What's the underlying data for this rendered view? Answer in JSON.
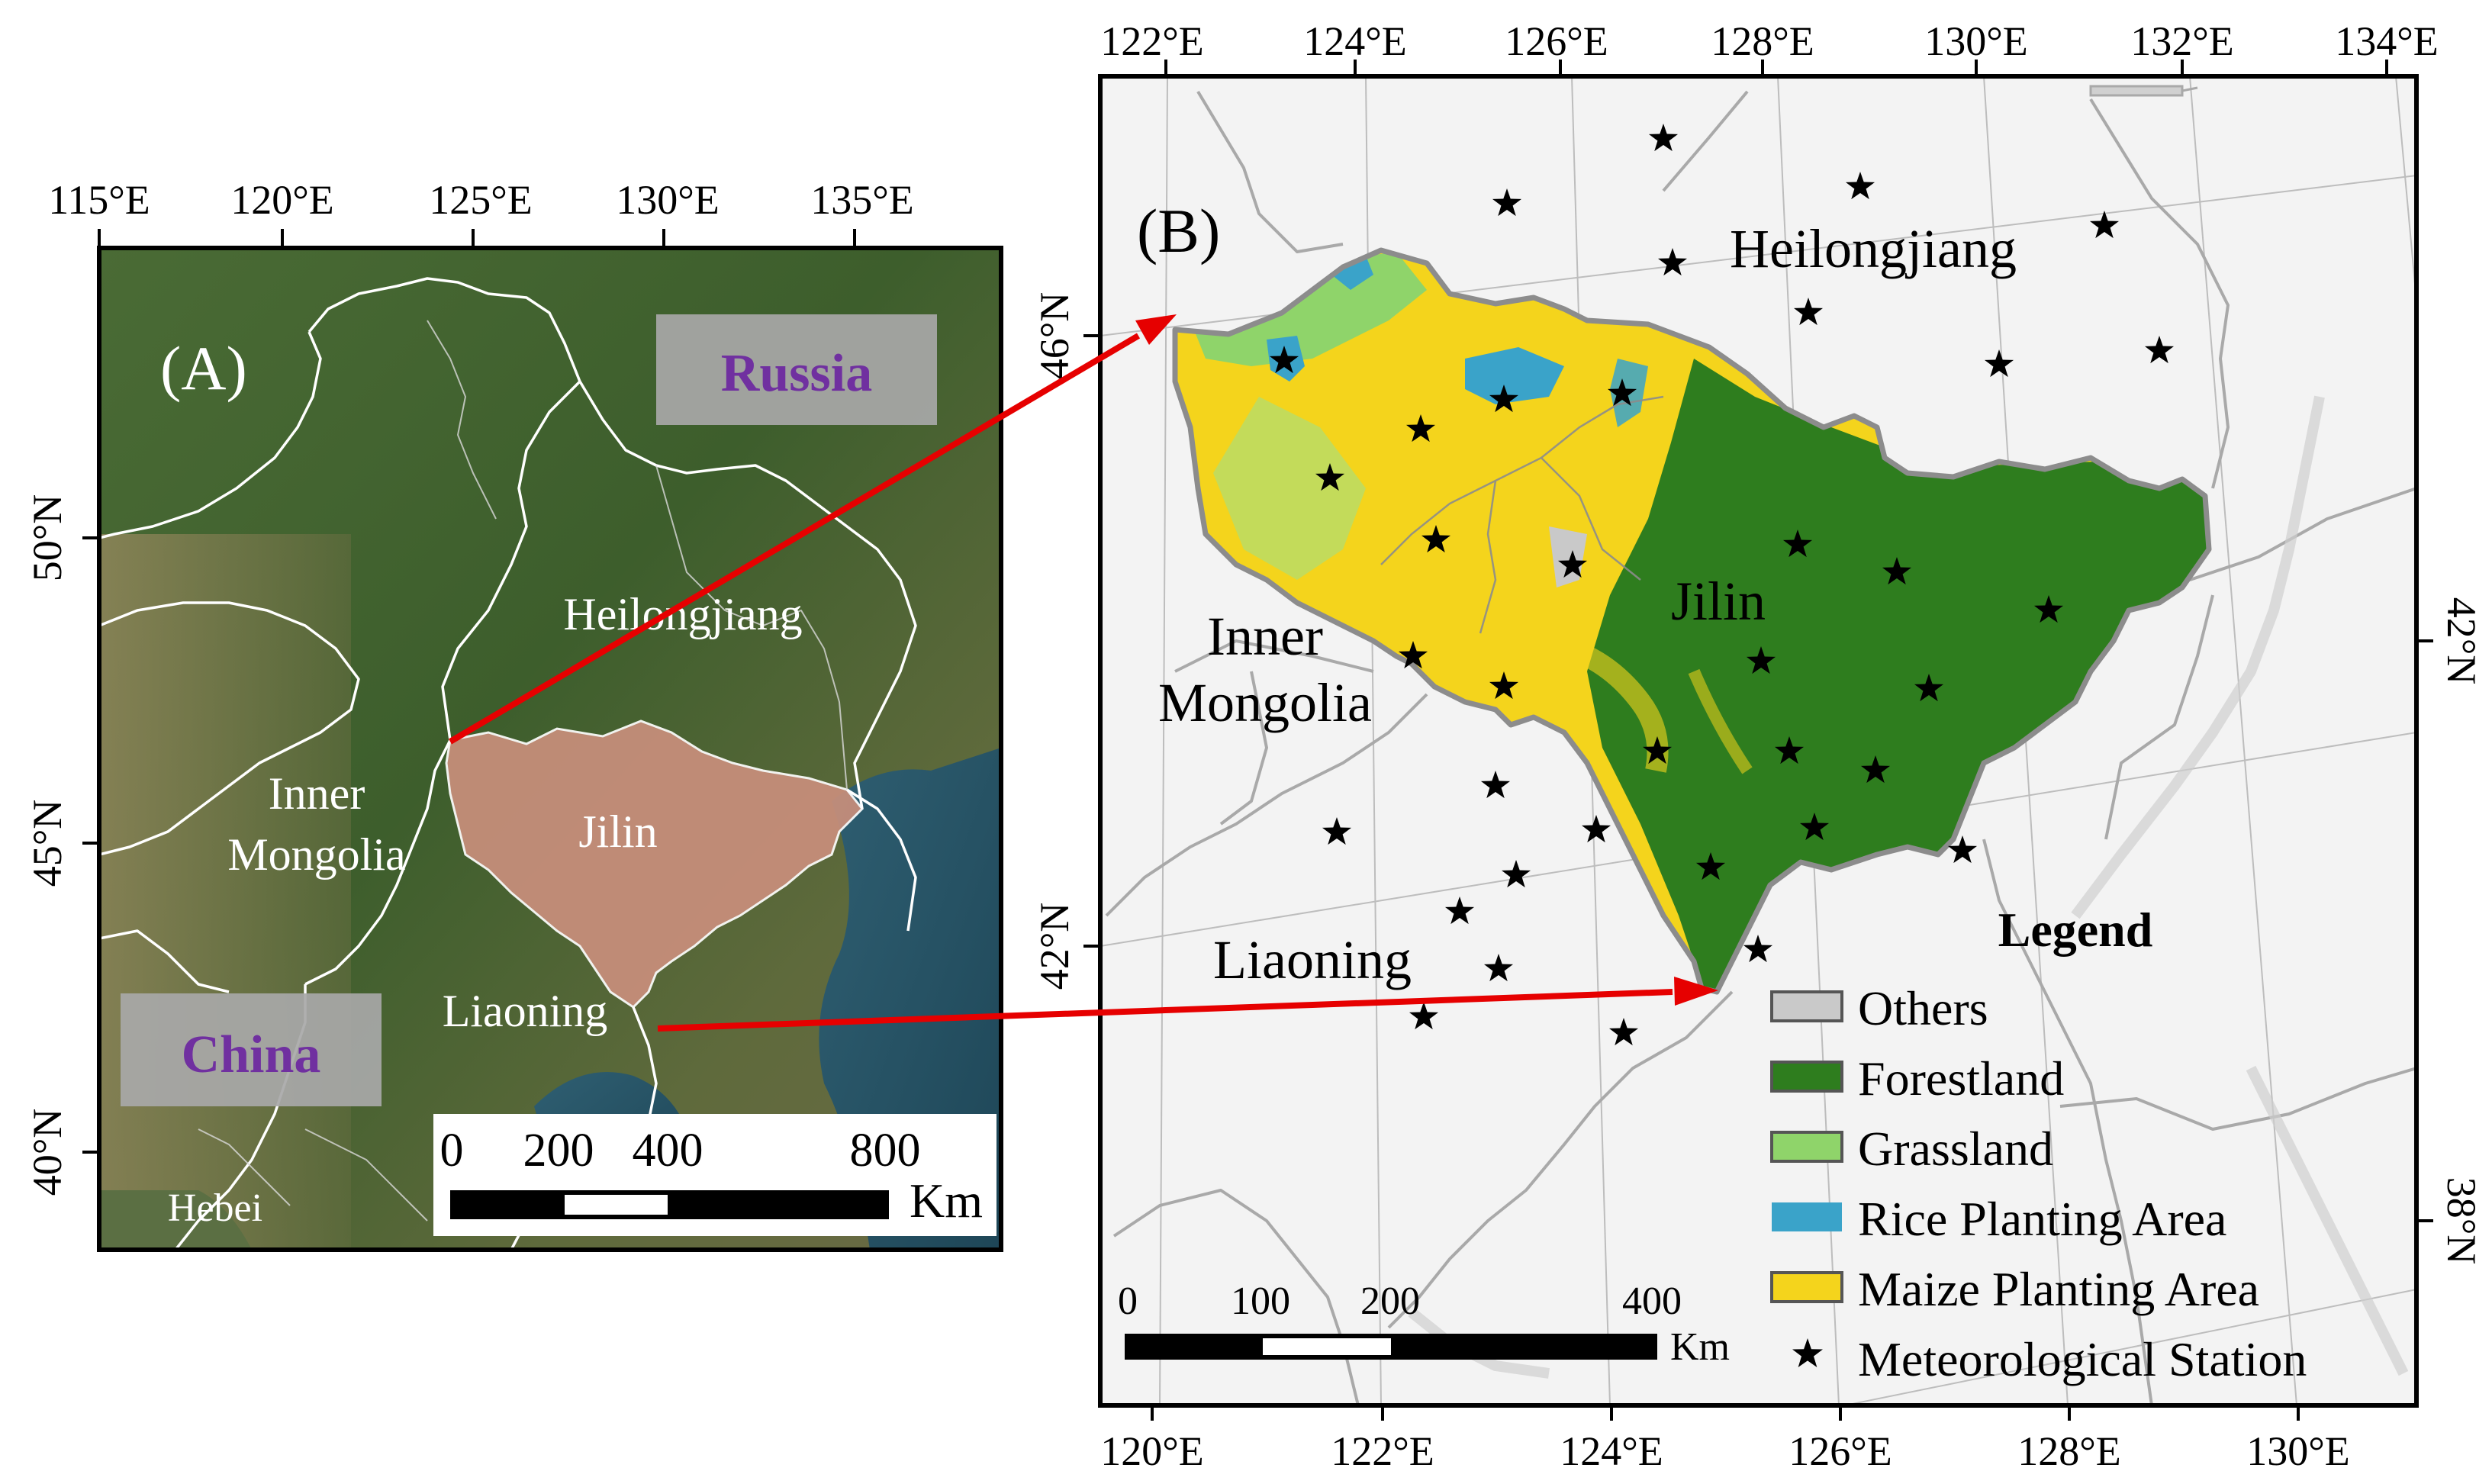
{
  "colors": {
    "jilin_highlight": "#c98f7c",
    "forest": "#2e7d1e",
    "grassland": "#8fd46a",
    "rice": "#3aa3c9",
    "maize": "#f4d41c",
    "others": "#c9c9c9",
    "arrow": "#e60000",
    "label_purple": "#7030a0",
    "label_box": "#a8a8a8"
  },
  "panel_a": {
    "label": "(A)",
    "top_ticks": [
      "115°E",
      "120°E",
      "125°E",
      "130°E",
      "135°E"
    ],
    "left_ticks": [
      "50°N",
      "45°N",
      "40°N"
    ],
    "country_russia": "Russia",
    "country_china": "China",
    "province_heilongjiang": "Heilongjiang",
    "province_inner_line1": "Inner",
    "province_inner_line2": "Mongolia",
    "province_jilin": "Jilin",
    "province_liaoning": "Liaoning",
    "province_hebei": "Hebei",
    "scale_labels": [
      "0",
      "200",
      "400",
      "800"
    ],
    "scale_unit": "Km"
  },
  "panel_b": {
    "label": "(B)",
    "top_ticks": [
      "122°E",
      "124°E",
      "126°E",
      "128°E",
      "130°E",
      "132°E",
      "134°E"
    ],
    "bottom_ticks": [
      "120°E",
      "122°E",
      "124°E",
      "126°E",
      "128°E",
      "130°E"
    ],
    "left_ticks": [
      "46°N",
      "42°N"
    ],
    "right_ticks": [
      "42°N",
      "38°N"
    ],
    "province_heilongjiang": "Heilongjiang",
    "province_inner_line1": "Inner",
    "province_inner_line2": "Mongolia",
    "province_jilin": "Jilin",
    "province_liaoning": "Liaoning",
    "scale_labels": [
      "0",
      "100",
      "200",
      "400"
    ],
    "scale_unit": "Km",
    "legend": {
      "title": "Legend",
      "items": [
        {
          "label": "Others",
          "swatch": "others"
        },
        {
          "label": "Forestland",
          "swatch": "forest"
        },
        {
          "label": "Grassland",
          "swatch": "grassland"
        },
        {
          "label": "Rice Planting Area",
          "swatch": "rice"
        },
        {
          "label": "Maize Planting Area",
          "swatch": "maize"
        },
        {
          "label": "Meteorological Station",
          "swatch": "star"
        }
      ]
    }
  }
}
